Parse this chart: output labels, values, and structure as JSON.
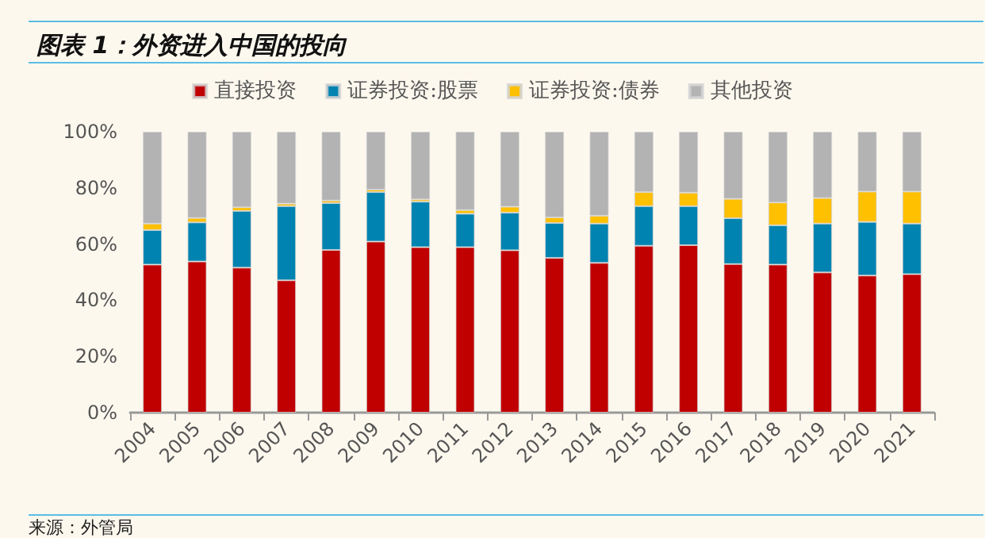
{
  "chart_data": {
    "type": "bar",
    "title": "图表 1：外资进入中国的投向",
    "stacked": true,
    "legend": "top",
    "grid": false,
    "categories": [
      "2004",
      "2005",
      "2006",
      "2007",
      "2008",
      "2009",
      "2010",
      "2011",
      "2012",
      "2013",
      "2014",
      "2015",
      "2016",
      "2017",
      "2018",
      "2019",
      "2020",
      "2021"
    ],
    "series": [
      {
        "name": "直接投资",
        "color": "#c00000",
        "values": [
          52.7,
          53.8,
          51.6,
          47.1,
          57.9,
          60.9,
          58.9,
          58.9,
          57.8,
          55.1,
          53.3,
          59.4,
          59.6,
          52.9,
          52.7,
          49.9,
          48.8,
          49.3
        ]
      },
      {
        "name": "证券投资:股票",
        "color": "#0083b0",
        "values": [
          12.3,
          13.9,
          20.2,
          26.4,
          16.7,
          17.6,
          16.2,
          11.9,
          13.4,
          12.4,
          14.0,
          14.1,
          13.9,
          16.3,
          14.0,
          17.4,
          19.1,
          18.0
        ]
      },
      {
        "name": "证券投资:债券",
        "color": "#ffc000",
        "values": [
          2.3,
          1.6,
          1.3,
          0.9,
          0.9,
          0.9,
          0.8,
          1.3,
          2.1,
          2.0,
          2.8,
          5.0,
          4.8,
          6.9,
          8.1,
          9.1,
          10.8,
          11.4
        ]
      },
      {
        "name": "其他投资",
        "color": "#b3b3b3",
        "values": [
          32.7,
          30.7,
          26.9,
          25.6,
          24.5,
          20.6,
          24.1,
          27.9,
          26.7,
          30.5,
          29.9,
          21.5,
          21.7,
          23.9,
          25.2,
          23.6,
          21.3,
          21.3
        ]
      }
    ],
    "ylim": [
      0,
      100
    ],
    "yticks": [
      {
        "value": 0,
        "label": "0%"
      },
      {
        "value": 20,
        "label": "20%"
      },
      {
        "value": 40,
        "label": "40%"
      },
      {
        "value": 60,
        "label": "60%"
      },
      {
        "value": 80,
        "label": "80%"
      },
      {
        "value": 100,
        "label": "100%"
      }
    ],
    "annotations": [
      "来源：外管局"
    ]
  }
}
